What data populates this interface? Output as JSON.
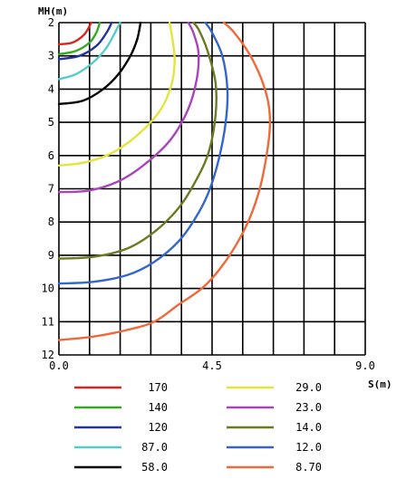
{
  "chart_data": {
    "type": "contour",
    "xlabel": "S(m)",
    "ylabel": "MH(m)",
    "xlim": [
      0,
      9
    ],
    "ylim": [
      2,
      12
    ],
    "y_inverted": true,
    "grid": true,
    "x_ticks": [
      "0.0",
      "4.5",
      "9.0"
    ],
    "y_ticks": [
      "2",
      "3",
      "4",
      "5",
      "6",
      "7",
      "8",
      "9",
      "10",
      "11",
      "12"
    ],
    "series": [
      {
        "name": "170",
        "color": "#dd2222",
        "points": [
          [
            0.0,
            2.65
          ],
          [
            0.4,
            2.6
          ],
          [
            0.75,
            2.35
          ],
          [
            0.95,
            2.0
          ]
        ]
      },
      {
        "name": "140",
        "color": "#33aa22",
        "points": [
          [
            0.0,
            2.95
          ],
          [
            0.5,
            2.85
          ],
          [
            0.9,
            2.6
          ],
          [
            1.1,
            2.3
          ],
          [
            1.2,
            2.0
          ]
        ]
      },
      {
        "name": "120",
        "color": "#223399",
        "points": [
          [
            0.0,
            3.1
          ],
          [
            0.6,
            3.0
          ],
          [
            1.1,
            2.7
          ],
          [
            1.4,
            2.3
          ],
          [
            1.55,
            2.0
          ]
        ]
      },
      {
        "name": "87.0",
        "color": "#55cccc",
        "points": [
          [
            0.0,
            3.7
          ],
          [
            0.5,
            3.55
          ],
          [
            1.0,
            3.2
          ],
          [
            1.4,
            2.75
          ],
          [
            1.75,
            2.1
          ],
          [
            1.8,
            2.0
          ]
        ]
      },
      {
        "name": "58.0",
        "color": "#000000",
        "points": [
          [
            0.0,
            4.45
          ],
          [
            0.7,
            4.35
          ],
          [
            1.3,
            4.0
          ],
          [
            1.75,
            3.55
          ],
          [
            2.1,
            3.0
          ],
          [
            2.3,
            2.5
          ],
          [
            2.4,
            2.0
          ]
        ]
      },
      {
        "name": "29.0",
        "color": "#e4e43a",
        "points": [
          [
            0.0,
            6.3
          ],
          [
            0.8,
            6.2
          ],
          [
            1.6,
            5.9
          ],
          [
            2.4,
            5.3
          ],
          [
            3.0,
            4.6
          ],
          [
            3.3,
            3.9
          ],
          [
            3.4,
            3.2
          ],
          [
            3.35,
            2.6
          ],
          [
            3.25,
            2.0
          ]
        ]
      },
      {
        "name": "23.0",
        "color": "#aa44bb",
        "points": [
          [
            0.0,
            7.1
          ],
          [
            0.9,
            7.05
          ],
          [
            1.8,
            6.75
          ],
          [
            2.6,
            6.2
          ],
          [
            3.3,
            5.5
          ],
          [
            3.8,
            4.6
          ],
          [
            4.05,
            3.7
          ],
          [
            4.1,
            2.9
          ],
          [
            3.95,
            2.3
          ],
          [
            3.8,
            2.0
          ]
        ]
      },
      {
        "name": "14.0",
        "color": "#6b7a20",
        "points": [
          [
            0.0,
            9.1
          ],
          [
            1.0,
            9.05
          ],
          [
            2.0,
            8.8
          ],
          [
            2.8,
            8.3
          ],
          [
            3.5,
            7.6
          ],
          [
            4.0,
            6.8
          ],
          [
            4.4,
            5.9
          ],
          [
            4.6,
            4.8
          ],
          [
            4.6,
            3.8
          ],
          [
            4.35,
            2.8
          ],
          [
            4.1,
            2.2
          ],
          [
            3.95,
            2.0
          ]
        ]
      },
      {
        "name": "12.0",
        "color": "#3366cc",
        "points": [
          [
            0.0,
            9.85
          ],
          [
            1.0,
            9.8
          ],
          [
            2.0,
            9.6
          ],
          [
            2.8,
            9.2
          ],
          [
            3.5,
            8.6
          ],
          [
            4.0,
            7.9
          ],
          [
            4.4,
            7.1
          ],
          [
            4.7,
            6.1
          ],
          [
            4.9,
            5.0
          ],
          [
            4.95,
            4.0
          ],
          [
            4.8,
            3.0
          ],
          [
            4.5,
            2.3
          ],
          [
            4.3,
            2.0
          ]
        ]
      },
      {
        "name": "8.70",
        "color": "#ee6a3a",
        "points": [
          [
            0.0,
            11.55
          ],
          [
            1.0,
            11.45
          ],
          [
            2.0,
            11.25
          ],
          [
            2.8,
            11.0
          ],
          [
            3.5,
            10.5
          ],
          [
            4.2,
            10.0
          ],
          [
            4.7,
            9.45
          ],
          [
            5.2,
            8.7
          ],
          [
            5.6,
            7.9
          ],
          [
            5.9,
            7.0
          ],
          [
            6.1,
            6.0
          ],
          [
            6.2,
            5.1
          ],
          [
            6.15,
            4.4
          ],
          [
            5.95,
            3.7
          ],
          [
            5.6,
            2.95
          ],
          [
            5.15,
            2.3
          ],
          [
            4.85,
            2.0
          ]
        ]
      }
    ]
  }
}
